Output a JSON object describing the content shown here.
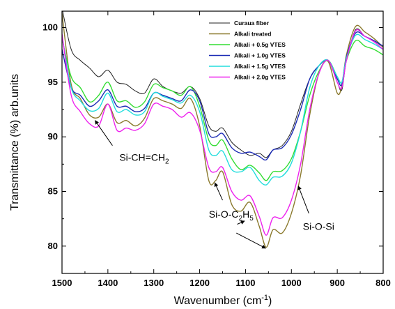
{
  "chart_data": {
    "type": "line",
    "title": "",
    "xlabel": "Wavenumber (cm⁻¹)",
    "xlabel_parts": [
      "Wavenumber (cm",
      "-1",
      ")"
    ],
    "ylabel": "Transmittance (%) arb.units",
    "xlim": [
      1500,
      800
    ],
    "ylim": [
      77.5,
      101.5
    ],
    "x_reversed": true,
    "grid": false,
    "legend_position": "top-right",
    "x_ticks": [
      1500,
      1400,
      1300,
      1200,
      1100,
      1000,
      900,
      800
    ],
    "y_ticks": [
      80,
      85,
      90,
      95,
      100
    ],
    "x": [
      1500,
      1480,
      1460,
      1440,
      1420,
      1400,
      1380,
      1360,
      1340,
      1320,
      1300,
      1280,
      1260,
      1240,
      1220,
      1200,
      1180,
      1165,
      1150,
      1130,
      1110,
      1090,
      1070,
      1055,
      1040,
      1020,
      1000,
      980,
      960,
      940,
      920,
      900,
      890,
      880,
      860,
      840,
      820,
      800
    ],
    "series": [
      {
        "name": "Curaua fiber",
        "color": "#222222",
        "values": [
          101.8,
          98.0,
          97.0,
          96.3,
          95.5,
          96.1,
          95.0,
          94.8,
          94.2,
          94.0,
          95.3,
          94.6,
          94.2,
          94.0,
          94.6,
          93.5,
          91.0,
          90.5,
          90.8,
          89.5,
          88.8,
          88.3,
          88.5,
          88.1,
          88.8,
          89.2,
          90.5,
          93.0,
          95.3,
          96.5,
          97.0,
          95.0,
          94.3,
          97.0,
          99.8,
          99.2,
          98.8,
          98.2
        ]
      },
      {
        "name": "Alkali treated",
        "color": "#8b7a2e",
        "values": [
          101.3,
          94.8,
          93.5,
          92.0,
          91.8,
          93.0,
          91.3,
          91.5,
          91.0,
          91.7,
          93.5,
          93.3,
          93.0,
          92.6,
          93.5,
          91.0,
          86.0,
          86.0,
          86.8,
          83.8,
          83.2,
          84.0,
          81.8,
          79.9,
          81.5,
          81.2,
          83.0,
          86.5,
          92.0,
          95.8,
          96.9,
          94.0,
          94.7,
          97.5,
          100.1,
          99.6,
          99.0,
          98.2
        ]
      },
      {
        "name": "Alkali + 0.5g VTES",
        "color": "#33dd33",
        "values": [
          99.0,
          95.5,
          94.5,
          93.2,
          93.8,
          95.0,
          93.3,
          93.3,
          92.7,
          93.2,
          94.8,
          94.5,
          94.2,
          93.8,
          94.6,
          92.8,
          89.7,
          89.2,
          89.7,
          88.0,
          87.0,
          87.4,
          86.7,
          86.0,
          86.8,
          86.9,
          88.0,
          90.5,
          93.8,
          96.0,
          97.0,
          95.5,
          95.0,
          97.0,
          98.8,
          98.3,
          98.0,
          97.5
        ]
      },
      {
        "name": "Alkali + 1.0g VTES",
        "color": "#1c2bb5",
        "values": [
          98.0,
          94.5,
          93.8,
          92.8,
          93.3,
          94.3,
          92.8,
          92.8,
          92.3,
          92.6,
          94.0,
          93.8,
          93.5,
          93.3,
          94.3,
          93.3,
          90.3,
          90.0,
          90.3,
          89.0,
          88.5,
          88.6,
          88.2,
          87.9,
          88.8,
          89.0,
          90.2,
          92.5,
          95.3,
          96.5,
          97.0,
          95.3,
          94.8,
          97.3,
          99.5,
          99.2,
          98.8,
          98.3
        ]
      },
      {
        "name": "Alkali + 1.5g VTES",
        "color": "#22dddd",
        "values": [
          99.3,
          94.5,
          93.3,
          92.4,
          92.6,
          94.0,
          92.3,
          92.5,
          92.0,
          92.3,
          94.0,
          93.7,
          93.4,
          93.1,
          93.8,
          92.3,
          88.8,
          88.3,
          88.7,
          87.0,
          86.8,
          87.2,
          86.0,
          85.6,
          86.3,
          86.4,
          87.6,
          90.5,
          94.5,
          96.5,
          97.0,
          95.5,
          95.0,
          97.2,
          99.3,
          98.9,
          98.5,
          98.0
        ]
      },
      {
        "name": "Alkali + 2.0g VTES",
        "color": "#ee22ee",
        "values": [
          99.4,
          93.8,
          92.3,
          91.2,
          91.0,
          93.0,
          90.6,
          90.8,
          90.6,
          91.2,
          93.0,
          92.8,
          92.5,
          91.8,
          92.2,
          90.6,
          87.2,
          86.8,
          87.2,
          85.0,
          84.2,
          84.6,
          82.7,
          81.0,
          82.6,
          82.6,
          84.2,
          87.5,
          92.5,
          95.8,
          97.0,
          95.0,
          94.5,
          97.0,
          99.7,
          99.2,
          98.7,
          98.0
        ]
      }
    ],
    "annotations": [
      {
        "text": "Si-CH=CH",
        "sub": "2",
        "label_at": [
          1375,
          87.8
        ],
        "arrow_from": [
          1390,
          89.2
        ],
        "arrow_to": [
          1428,
          91.5
        ]
      },
      {
        "text": "Si-O-C",
        "sub": "2",
        "text2": "H",
        "sub2": "5",
        "label_at": [
          1180,
          82.6
        ],
        "arrow_from": [
          1150,
          84.2
        ],
        "arrow_to": [
          1167,
          85.8
        ],
        "arrow2_from": [
          1118,
          82.0
        ],
        "arrow2_to": [
          1102,
          82.3
        ],
        "arrow3_from": [
          1120,
          81.2
        ],
        "arrow3_to": [
          1056,
          79.8
        ]
      },
      {
        "text": "Si-O-Si",
        "label_at": [
          975,
          81.5
        ],
        "arrow_from": [
          962,
          83.0
        ],
        "arrow_to": [
          985,
          85.5
        ]
      }
    ]
  }
}
